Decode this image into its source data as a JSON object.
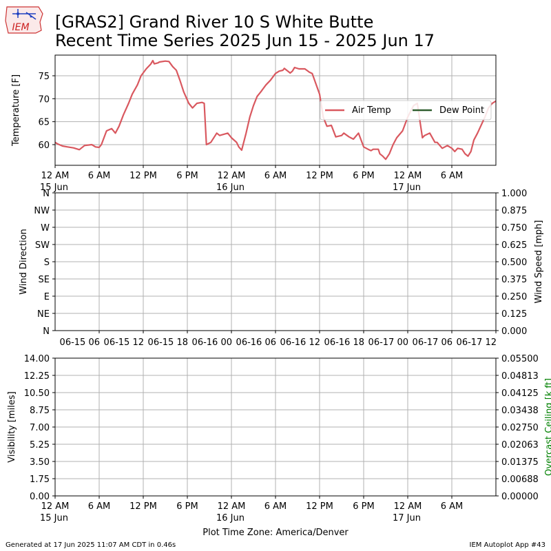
{
  "header": {
    "title_line1": "[GRAS2] Grand River 10 S White Butte",
    "title_line2": "Recent Time Series 2025 Jun 15 - 2025 Jun 17",
    "logo_text": "IEM"
  },
  "footer": {
    "generated": "Generated at 17 Jun 2025 11:07 AM CDT in 0.46s",
    "app": "IEM Autoplot App #43",
    "timezone_label": "Plot Time Zone: America/Denver"
  },
  "colors": {
    "air_temp": "#d9585f",
    "dew_point": "#2f5e2f",
    "grid": "#b0b0b0",
    "ceiling_label": "#008000"
  },
  "chart_data": [
    {
      "type": "line",
      "title": "",
      "ylabel": "Temperature [F]",
      "xlim": [
        0,
        60
      ],
      "ylim": [
        55.5,
        79.5
      ],
      "yticks": [
        60,
        65,
        70,
        75
      ],
      "grid": true,
      "legend": {
        "placement": "center-right",
        "entries": [
          "Air Temp",
          "Dew Point"
        ]
      },
      "xtick_labels": [
        {
          "x": 0,
          "line1": "12 AM",
          "line2": "15 Jun"
        },
        {
          "x": 6,
          "line1": "6 AM",
          "line2": ""
        },
        {
          "x": 12,
          "line1": "12 PM",
          "line2": ""
        },
        {
          "x": 18,
          "line1": "6 PM",
          "line2": ""
        },
        {
          "x": 24,
          "line1": "12 AM",
          "line2": "16 Jun"
        },
        {
          "x": 30,
          "line1": "6 AM",
          "line2": ""
        },
        {
          "x": 36,
          "line1": "12 PM",
          "line2": ""
        },
        {
          "x": 42,
          "line1": "6 PM",
          "line2": ""
        },
        {
          "x": 48,
          "line1": "12 AM",
          "line2": "17 Jun"
        },
        {
          "x": 54,
          "line1": "6 AM",
          "line2": ""
        }
      ],
      "series": [
        {
          "name": "Air Temp",
          "x": [
            -1.3,
            -0.5,
            0.3,
            1.0,
            1.7,
            2.5,
            3.3,
            4.0,
            5.0,
            5.5,
            6.0,
            6.3,
            7.0,
            7.7,
            8.2,
            8.7,
            9.3,
            10.0,
            10.5,
            11.2,
            11.7,
            12.4,
            13.0,
            13.3,
            13.5,
            14.0,
            14.2,
            15.0,
            15.5,
            16.0,
            16.5,
            17.0,
            17.5,
            18.2,
            18.7,
            19.3,
            20.0,
            20.3,
            20.6,
            21.2,
            22.0,
            22.4,
            23.5,
            24.0,
            24.7,
            25.0,
            25.4,
            26.0,
            26.5,
            27.0,
            27.5,
            28.0,
            28.7,
            29.3,
            30.0,
            30.5,
            31.0,
            31.2,
            32.0,
            32.3,
            32.6,
            33.2,
            34.0,
            34.6,
            35.0,
            36.0,
            36.5,
            37.0,
            37.6,
            38.2,
            39.0,
            39.3,
            40.0,
            40.6,
            41.3,
            42.0,
            42.6,
            43.0,
            43.3,
            44.0,
            44.2,
            44.6,
            45.0,
            45.5,
            46.0,
            46.5,
            47.3,
            48.0,
            48.8,
            49.3,
            50.0,
            50.3,
            51.0,
            51.7,
            52.0,
            52.7,
            53.4,
            54.0,
            54.4,
            54.8,
            55.4,
            55.8,
            56.2,
            56.6,
            57.0,
            57.5,
            58.5,
            59.0,
            59.5,
            60.0
          ],
          "y": [
            63.0,
            61.0,
            60.2,
            59.7,
            59.5,
            59.3,
            58.9,
            59.8,
            60.0,
            59.5,
            59.4,
            60.0,
            63.0,
            63.5,
            62.5,
            64.0,
            66.5,
            69.0,
            71.0,
            73.0,
            75.0,
            76.5,
            77.5,
            78.3,
            77.6,
            77.8,
            78.0,
            78.2,
            78.1,
            77.0,
            76.2,
            74.0,
            71.5,
            69.0,
            68.0,
            69.0,
            69.2,
            69.0,
            60.0,
            60.5,
            62.5,
            62.0,
            62.5,
            61.5,
            60.5,
            59.5,
            58.8,
            62.5,
            66.0,
            68.5,
            70.5,
            71.5,
            73.0,
            74.0,
            75.5,
            76.0,
            76.2,
            76.6,
            75.6,
            76.0,
            76.8,
            76.5,
            76.5,
            75.8,
            75.5,
            71.0,
            66.0,
            64.0,
            64.2,
            61.7,
            62.0,
            62.5,
            61.7,
            61.2,
            62.5,
            59.5,
            59.0,
            58.7,
            59.0,
            59.0,
            58.0,
            57.5,
            56.8,
            58.0,
            60.0,
            61.5,
            63.0,
            66.0,
            68.5,
            69.0,
            61.5,
            62.0,
            62.5,
            60.5,
            60.5,
            59.2,
            59.8,
            59.2,
            58.5,
            59.2,
            59.0,
            58.0,
            57.5,
            58.5,
            61.0,
            62.5,
            66.0,
            68.0,
            69.0,
            69.5
          ]
        },
        {
          "name": "Dew Point",
          "x": [],
          "y": []
        }
      ]
    },
    {
      "type": "line",
      "title": "",
      "ylabel": "Wind Direction",
      "ylabel_right": "Wind Speed [mph]",
      "xlim": [
        0,
        60
      ],
      "ylim": [
        0,
        360
      ],
      "ylim_right": [
        0,
        1
      ],
      "grid": true,
      "yticks_left": [
        {
          "v": 0,
          "label": "N"
        },
        {
          "v": 45,
          "label": "NE"
        },
        {
          "v": 90,
          "label": "E"
        },
        {
          "v": 135,
          "label": "SE"
        },
        {
          "v": 180,
          "label": "S"
        },
        {
          "v": 225,
          "label": "SW"
        },
        {
          "v": 270,
          "label": "W"
        },
        {
          "v": 315,
          "label": "NW"
        },
        {
          "v": 360,
          "label": "N"
        }
      ],
      "yticks_right": [
        "0.000",
        "0.125",
        "0.250",
        "0.375",
        "0.500",
        "0.625",
        "0.750",
        "0.875",
        "1.000"
      ],
      "xtick_labels": [
        {
          "x": 6,
          "label": "06-15 06"
        },
        {
          "x": 12,
          "label": "06-15 12"
        },
        {
          "x": 18,
          "label": "06-15 18"
        },
        {
          "x": 24,
          "label": "06-16 00"
        },
        {
          "x": 30,
          "label": "06-16 06"
        },
        {
          "x": 36,
          "label": "06-16 12"
        },
        {
          "x": 42,
          "label": "06-16 18"
        },
        {
          "x": 48,
          "label": "06-17 00"
        },
        {
          "x": 54,
          "label": "06-17 06"
        },
        {
          "x": 60,
          "label": "06-17 12"
        }
      ],
      "series": []
    },
    {
      "type": "line",
      "title": "",
      "ylabel": "Visibility [miles]",
      "ylabel_right": "Overcast Ceiling [k ft]",
      "xlim": [
        0,
        60
      ],
      "ylim": [
        0,
        14
      ],
      "ylim_right": [
        0,
        0.055
      ],
      "grid": true,
      "yticks_left": [
        "0.00",
        "1.75",
        "3.50",
        "5.25",
        "7.00",
        "8.75",
        "10.50",
        "12.25",
        "14.00"
      ],
      "yticks_right": [
        "0.00000",
        "0.00688",
        "0.01375",
        "0.02063",
        "0.02750",
        "0.03438",
        "0.04125",
        "0.04813",
        "0.05500"
      ],
      "xtick_labels": [
        {
          "x": 0,
          "line1": "12 AM",
          "line2": "15 Jun"
        },
        {
          "x": 6,
          "line1": "6 AM",
          "line2": ""
        },
        {
          "x": 12,
          "line1": "12 PM",
          "line2": ""
        },
        {
          "x": 18,
          "line1": "6 PM",
          "line2": ""
        },
        {
          "x": 24,
          "line1": "12 AM",
          "line2": "16 Jun"
        },
        {
          "x": 30,
          "line1": "6 AM",
          "line2": ""
        },
        {
          "x": 36,
          "line1": "12 PM",
          "line2": ""
        },
        {
          "x": 42,
          "line1": "6 PM",
          "line2": ""
        },
        {
          "x": 48,
          "line1": "12 AM",
          "line2": "17 Jun"
        },
        {
          "x": 54,
          "line1": "6 AM",
          "line2": ""
        }
      ],
      "series": []
    }
  ]
}
